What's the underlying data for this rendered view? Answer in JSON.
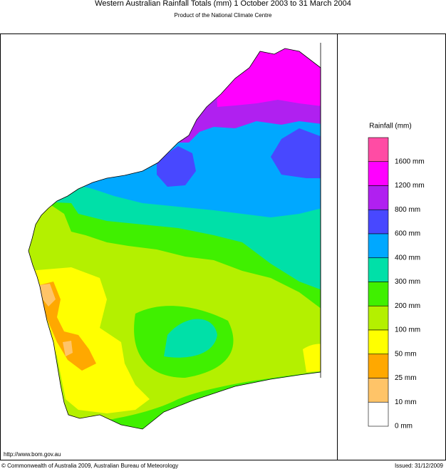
{
  "header": {
    "title": "Western Australian Rainfall Totals (mm) 1 October 2003 to 31 March 2004",
    "subtitle": "Product of the National Climate Centre"
  },
  "legend": {
    "title": "Rainfall (mm)",
    "colors": [
      "#ff4ca4",
      "#ff00ff",
      "#b020f0",
      "#4848ff",
      "#00a8ff",
      "#00e0a8",
      "#40f000",
      "#b4f000",
      "#ffff00",
      "#ffa800",
      "#ffc468",
      "#ffffff"
    ],
    "labels": [
      "1600 mm",
      "1200 mm",
      "800 mm",
      "600 mm",
      "400 mm",
      "300 mm",
      "200 mm",
      "100 mm",
      "50 mm",
      "25 mm",
      "10 mm",
      "0 mm"
    ]
  },
  "footer": {
    "url": "http://www.bom.gov.au",
    "copyright": "© Commonwealth of Australia 2009, Australian Bureau of Meteorology",
    "issued": "Issued: 31/12/2009"
  }
}
